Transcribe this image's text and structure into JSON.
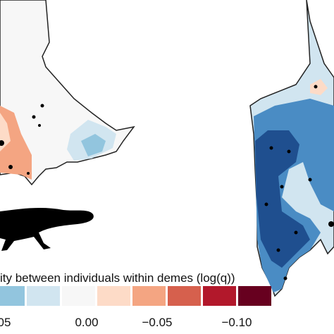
{
  "colorbar": {
    "title": "ity between individuals within demes (log(q))",
    "colors": [
      "#92c5de",
      "#d1e5f0",
      "#f7f7f7",
      "#fddbc7",
      "#f4a582",
      "#d6604d",
      "#b2182b",
      "#67001f"
    ],
    "ticks": [
      "05",
      "0.00",
      "−0.05",
      "−0.10"
    ]
  }
}
